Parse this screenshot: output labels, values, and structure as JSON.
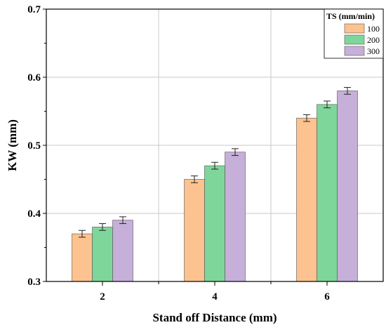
{
  "chart_data": {
    "type": "bar",
    "title": "",
    "xlabel": "Stand off Distance (mm)",
    "ylabel": "KW (mm)",
    "categories": [
      "2",
      "4",
      "6"
    ],
    "ylim": [
      0.3,
      0.7
    ],
    "yticks": [
      "0.3",
      "0.4",
      "0.5",
      "0.6",
      "0.7"
    ],
    "grid": true,
    "legend": {
      "title": "TS (mm/min)",
      "position": "top-right"
    },
    "series": [
      {
        "name": "100",
        "color": "#fcc28f",
        "values": [
          0.37,
          0.45,
          0.54
        ],
        "error": [
          0.005,
          0.005,
          0.005
        ]
      },
      {
        "name": "200",
        "color": "#7fd69a",
        "values": [
          0.38,
          0.47,
          0.56
        ],
        "error": [
          0.005,
          0.005,
          0.005
        ]
      },
      {
        "name": "300",
        "color": "#c6afd8",
        "values": [
          0.39,
          0.49,
          0.58
        ],
        "error": [
          0.005,
          0.005,
          0.005
        ]
      }
    ]
  }
}
